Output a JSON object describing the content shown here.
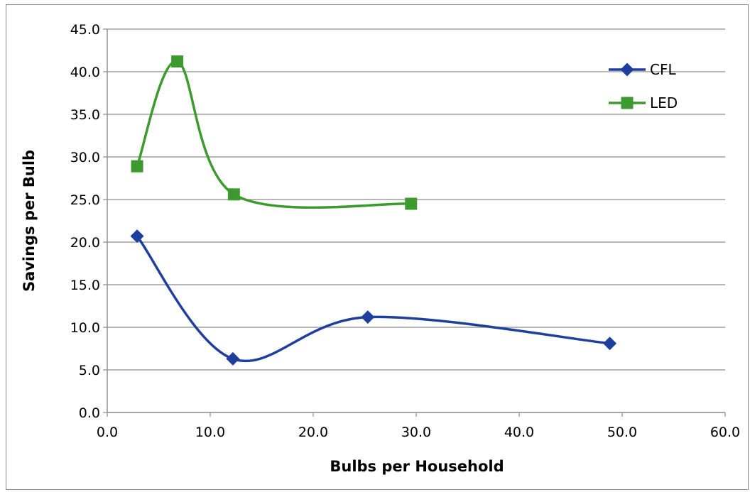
{
  "chart_data": {
    "type": "scatter",
    "title": "",
    "xlabel": "Bulbs per Household",
    "ylabel": "Savings per Bulb",
    "xlim": [
      0,
      60
    ],
    "ylim": [
      0,
      45
    ],
    "x_ticks": [
      "0.0",
      "10.0",
      "20.0",
      "30.0",
      "40.0",
      "50.0",
      "60.0"
    ],
    "y_ticks": [
      "0.0",
      "5.0",
      "10.0",
      "15.0",
      "20.0",
      "25.0",
      "30.0",
      "35.0",
      "40.0",
      "45.0"
    ],
    "grid": "horizontal",
    "line_style": "smoothed",
    "legend_position": "top-right",
    "series": [
      {
        "name": "CFL",
        "color": "#1f3f9f",
        "marker": "diamond",
        "x": [
          2.9,
          12.2,
          25.3,
          48.8
        ],
        "y": [
          20.7,
          6.3,
          11.2,
          8.1
        ]
      },
      {
        "name": "LED",
        "color": "#3d9a2e",
        "marker": "square",
        "x": [
          2.9,
          6.8,
          12.3,
          29.5
        ],
        "y": [
          28.9,
          41.2,
          25.6,
          24.5
        ]
      }
    ]
  }
}
